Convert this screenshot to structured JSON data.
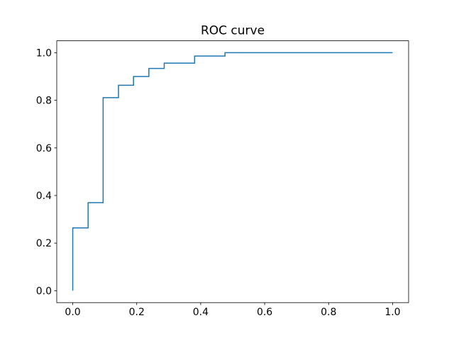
{
  "figure": {
    "background": "#ffffff"
  },
  "chart_data": {
    "type": "line",
    "subtype": "roc-step-curve",
    "title": "ROC curve",
    "xlabel": "",
    "ylabel": "",
    "xlim": [
      -0.05,
      1.05
    ],
    "ylim": [
      -0.05,
      1.05
    ],
    "x_ticks": [
      0.0,
      0.2,
      0.4,
      0.6,
      0.8,
      1.0
    ],
    "y_ticks": [
      0.0,
      0.2,
      0.4,
      0.6,
      0.8,
      1.0
    ],
    "tick_label_format_decimals": 1,
    "grid": false,
    "legend": "none",
    "line_color": "#1f77b4",
    "line_width": 1.5,
    "axes_color": "#000000",
    "series": [
      {
        "name": "ROC curve",
        "x": [
          0.0,
          0.0,
          0.048,
          0.048,
          0.095,
          0.095,
          0.143,
          0.143,
          0.19,
          0.19,
          0.238,
          0.238,
          0.286,
          0.286,
          0.381,
          0.381,
          0.476,
          0.476,
          1.0
        ],
        "y": [
          0.0,
          0.264,
          0.264,
          0.37,
          0.37,
          0.811,
          0.811,
          0.863,
          0.863,
          0.9,
          0.9,
          0.934,
          0.934,
          0.956,
          0.956,
          0.986,
          0.986,
          1.0,
          1.0
        ]
      }
    ]
  }
}
